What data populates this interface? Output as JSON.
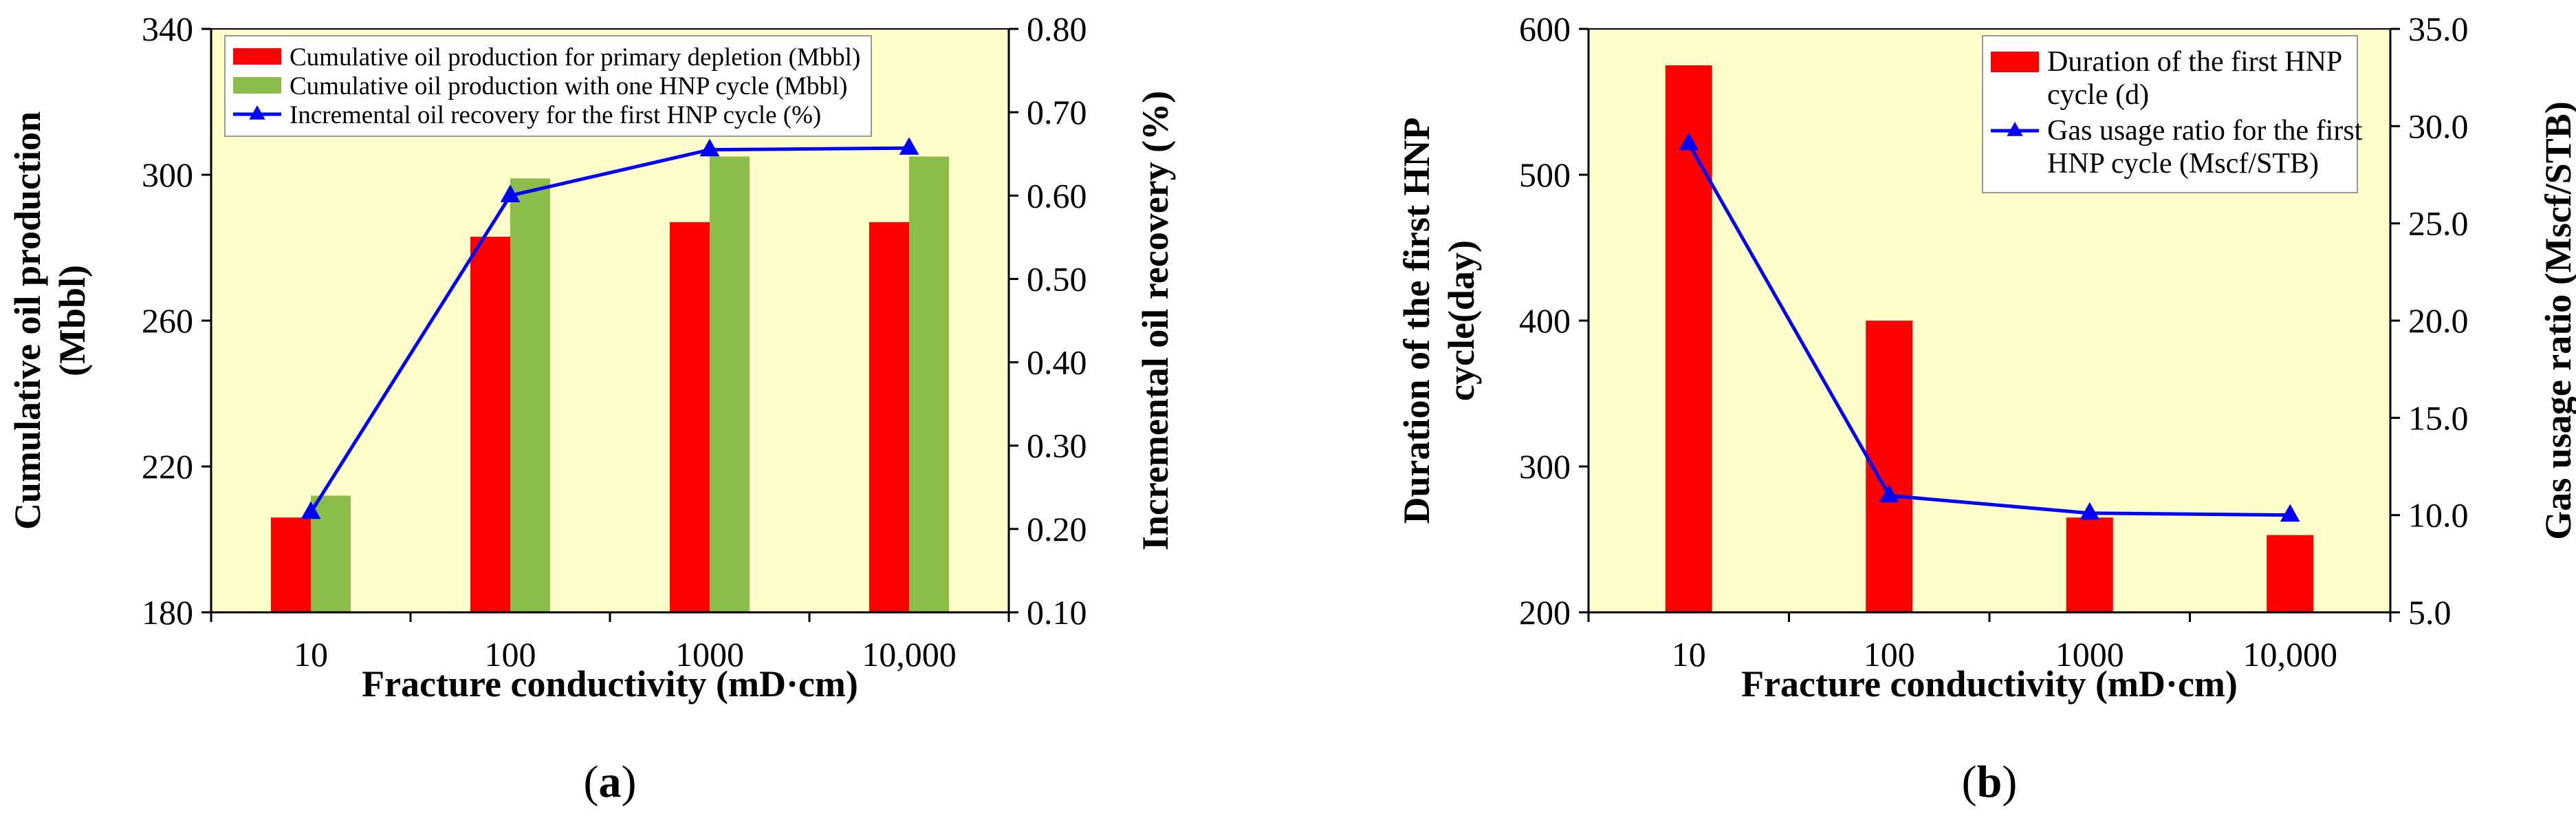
{
  "chart_data": [
    {
      "type": "bar",
      "panel_label": "(a)",
      "panel_letter": "a",
      "categories": [
        "10",
        "100",
        "1000",
        "10,000"
      ],
      "xlabel": "Fracture conductivity (mD·cm)",
      "ylabel_lines": [
        "Cumulative oil production",
        "(Mbbl)"
      ],
      "y2label": "Incremental oil recovery (%)",
      "ylim": [
        180,
        340
      ],
      "yticks": [
        "180",
        "220",
        "260",
        "300",
        "340"
      ],
      "y2lim": [
        0.1,
        0.8
      ],
      "y2ticks": [
        "0.10",
        "0.20",
        "0.30",
        "0.40",
        "0.50",
        "0.60",
        "0.70",
        "0.80"
      ],
      "series": [
        {
          "name": "Cumulative oil production for primary depletion (Mbbl)",
          "kind": "bar",
          "axis": "left",
          "color": "#ff0000",
          "values": [
            206,
            283,
            287,
            287
          ]
        },
        {
          "name": "Cumulative oil production with one HNP cycle (Mbbl)",
          "kind": "bar",
          "axis": "left",
          "color": "#8cbd4a",
          "values": [
            212,
            299,
            305,
            305
          ]
        },
        {
          "name": "Incremental oil recovery for the first HNP cycle (%)",
          "kind": "line",
          "axis": "right",
          "color": "#0000ff",
          "values": [
            0.22,
            0.6,
            0.655,
            0.657
          ]
        }
      ],
      "legend_lines": [
        [
          "Cumulative oil production for primary depletion (Mbbl)"
        ],
        [
          "Cumulative oil production with one HNP cycle (Mbbl)"
        ],
        [
          "Incremental oil recovery for the first HNP cycle (%)"
        ]
      ],
      "legend": "top-left",
      "background": "#ffffcc"
    },
    {
      "type": "bar",
      "panel_label": "(b)",
      "panel_letter": "b",
      "categories": [
        "10",
        "100",
        "1000",
        "10,000"
      ],
      "xlabel": "Fracture conductivity (mD·cm)",
      "ylabel_lines": [
        "Duration of the first HNP",
        "cycle(day)"
      ],
      "y2label": "Gas usage ratio (Mscf/STB)",
      "ylim": [
        200,
        600
      ],
      "yticks": [
        "200",
        "300",
        "400",
        "500",
        "600"
      ],
      "y2lim": [
        5.0,
        35.0
      ],
      "y2ticks": [
        "5.0",
        "10.0",
        "15.0",
        "20.0",
        "25.0",
        "30.0",
        "35.0"
      ],
      "series": [
        {
          "name": "Duration of the first HNP cycle (d)",
          "kind": "bar",
          "axis": "left",
          "color": "#ff0000",
          "values": [
            575,
            400,
            265,
            253
          ]
        },
        {
          "name": "Gas usage ratio for the first HNP cycle (Mscf/STB)",
          "kind": "line",
          "axis": "right",
          "color": "#0000ff",
          "values": [
            29.1,
            11.0,
            10.1,
            10.0
          ]
        }
      ],
      "legend_lines": [
        [
          "Duration of the first HNP",
          "cycle (d)"
        ],
        [
          "Gas usage ratio for the first",
          "HNP cycle (Mscf/STB)"
        ]
      ],
      "legend": "top-right",
      "background": "#ffffcc"
    }
  ]
}
